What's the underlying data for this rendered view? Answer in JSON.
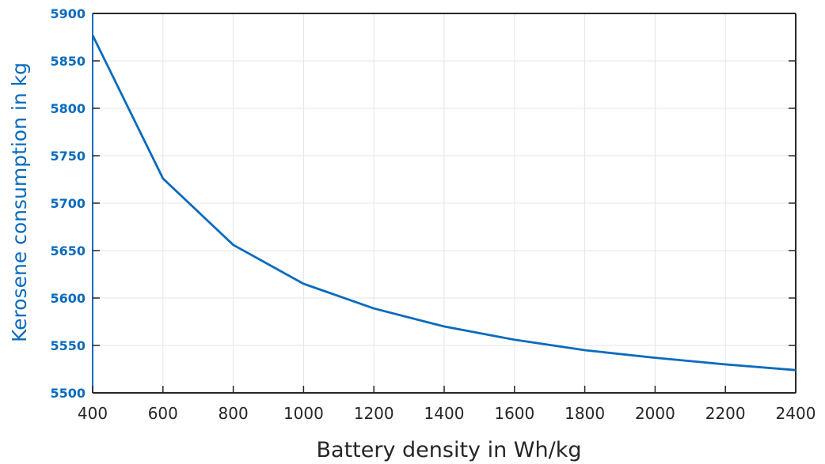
{
  "colors": {
    "series": "#0A6BBD",
    "y_axis": "#0A6BBD",
    "x_axis": "#262626",
    "box": "#262626",
    "grid": "#E6E6E6"
  },
  "chart_data": {
    "type": "line",
    "xlabel": "Battery density in Wh/kg",
    "ylabel": "Kerosene consumption in kg",
    "xlim": [
      400,
      2400
    ],
    "ylim": [
      5500,
      5900
    ],
    "x_ticks": [
      "400",
      "600",
      "800",
      "1000",
      "1200",
      "1400",
      "1600",
      "1800",
      "2000",
      "2200",
      "2400"
    ],
    "y_ticks": [
      "5500",
      "5550",
      "5600",
      "5650",
      "5700",
      "5750",
      "5800",
      "5850",
      "5900"
    ],
    "grid": true,
    "series": [
      {
        "x": [
          400,
          600,
          800,
          1000,
          1200,
          1400,
          1600,
          1800,
          2000,
          2200,
          2400
        ],
        "y": [
          5877,
          5726,
          5656,
          5615,
          5589,
          5570,
          5556,
          5545,
          5537,
          5530,
          5524
        ]
      }
    ]
  }
}
